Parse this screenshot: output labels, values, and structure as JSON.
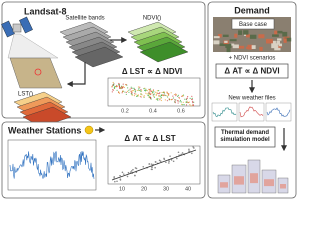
{
  "landsat": {
    "title": "Landsat-8",
    "bands_label": "Satellite bands",
    "ndvi_label": "NDVI()",
    "lst_label": "LST()",
    "relation": "Δ LST ∝ Δ NDVI",
    "xticks": [
      0.2,
      0.4,
      0.6
    ]
  },
  "weather": {
    "title": "Weather Stations",
    "relation": "Δ AT ∝ Δ LST",
    "xticks": [
      10,
      20,
      30,
      40
    ]
  },
  "demand": {
    "title": "Demand",
    "base_case": "Base case",
    "scenarios": "+ NDVI scenarios",
    "relation": "Δ AT ∝ Δ NDVI",
    "weather_files": "New weather files",
    "model": "Thermal demand simulation model"
  }
}
